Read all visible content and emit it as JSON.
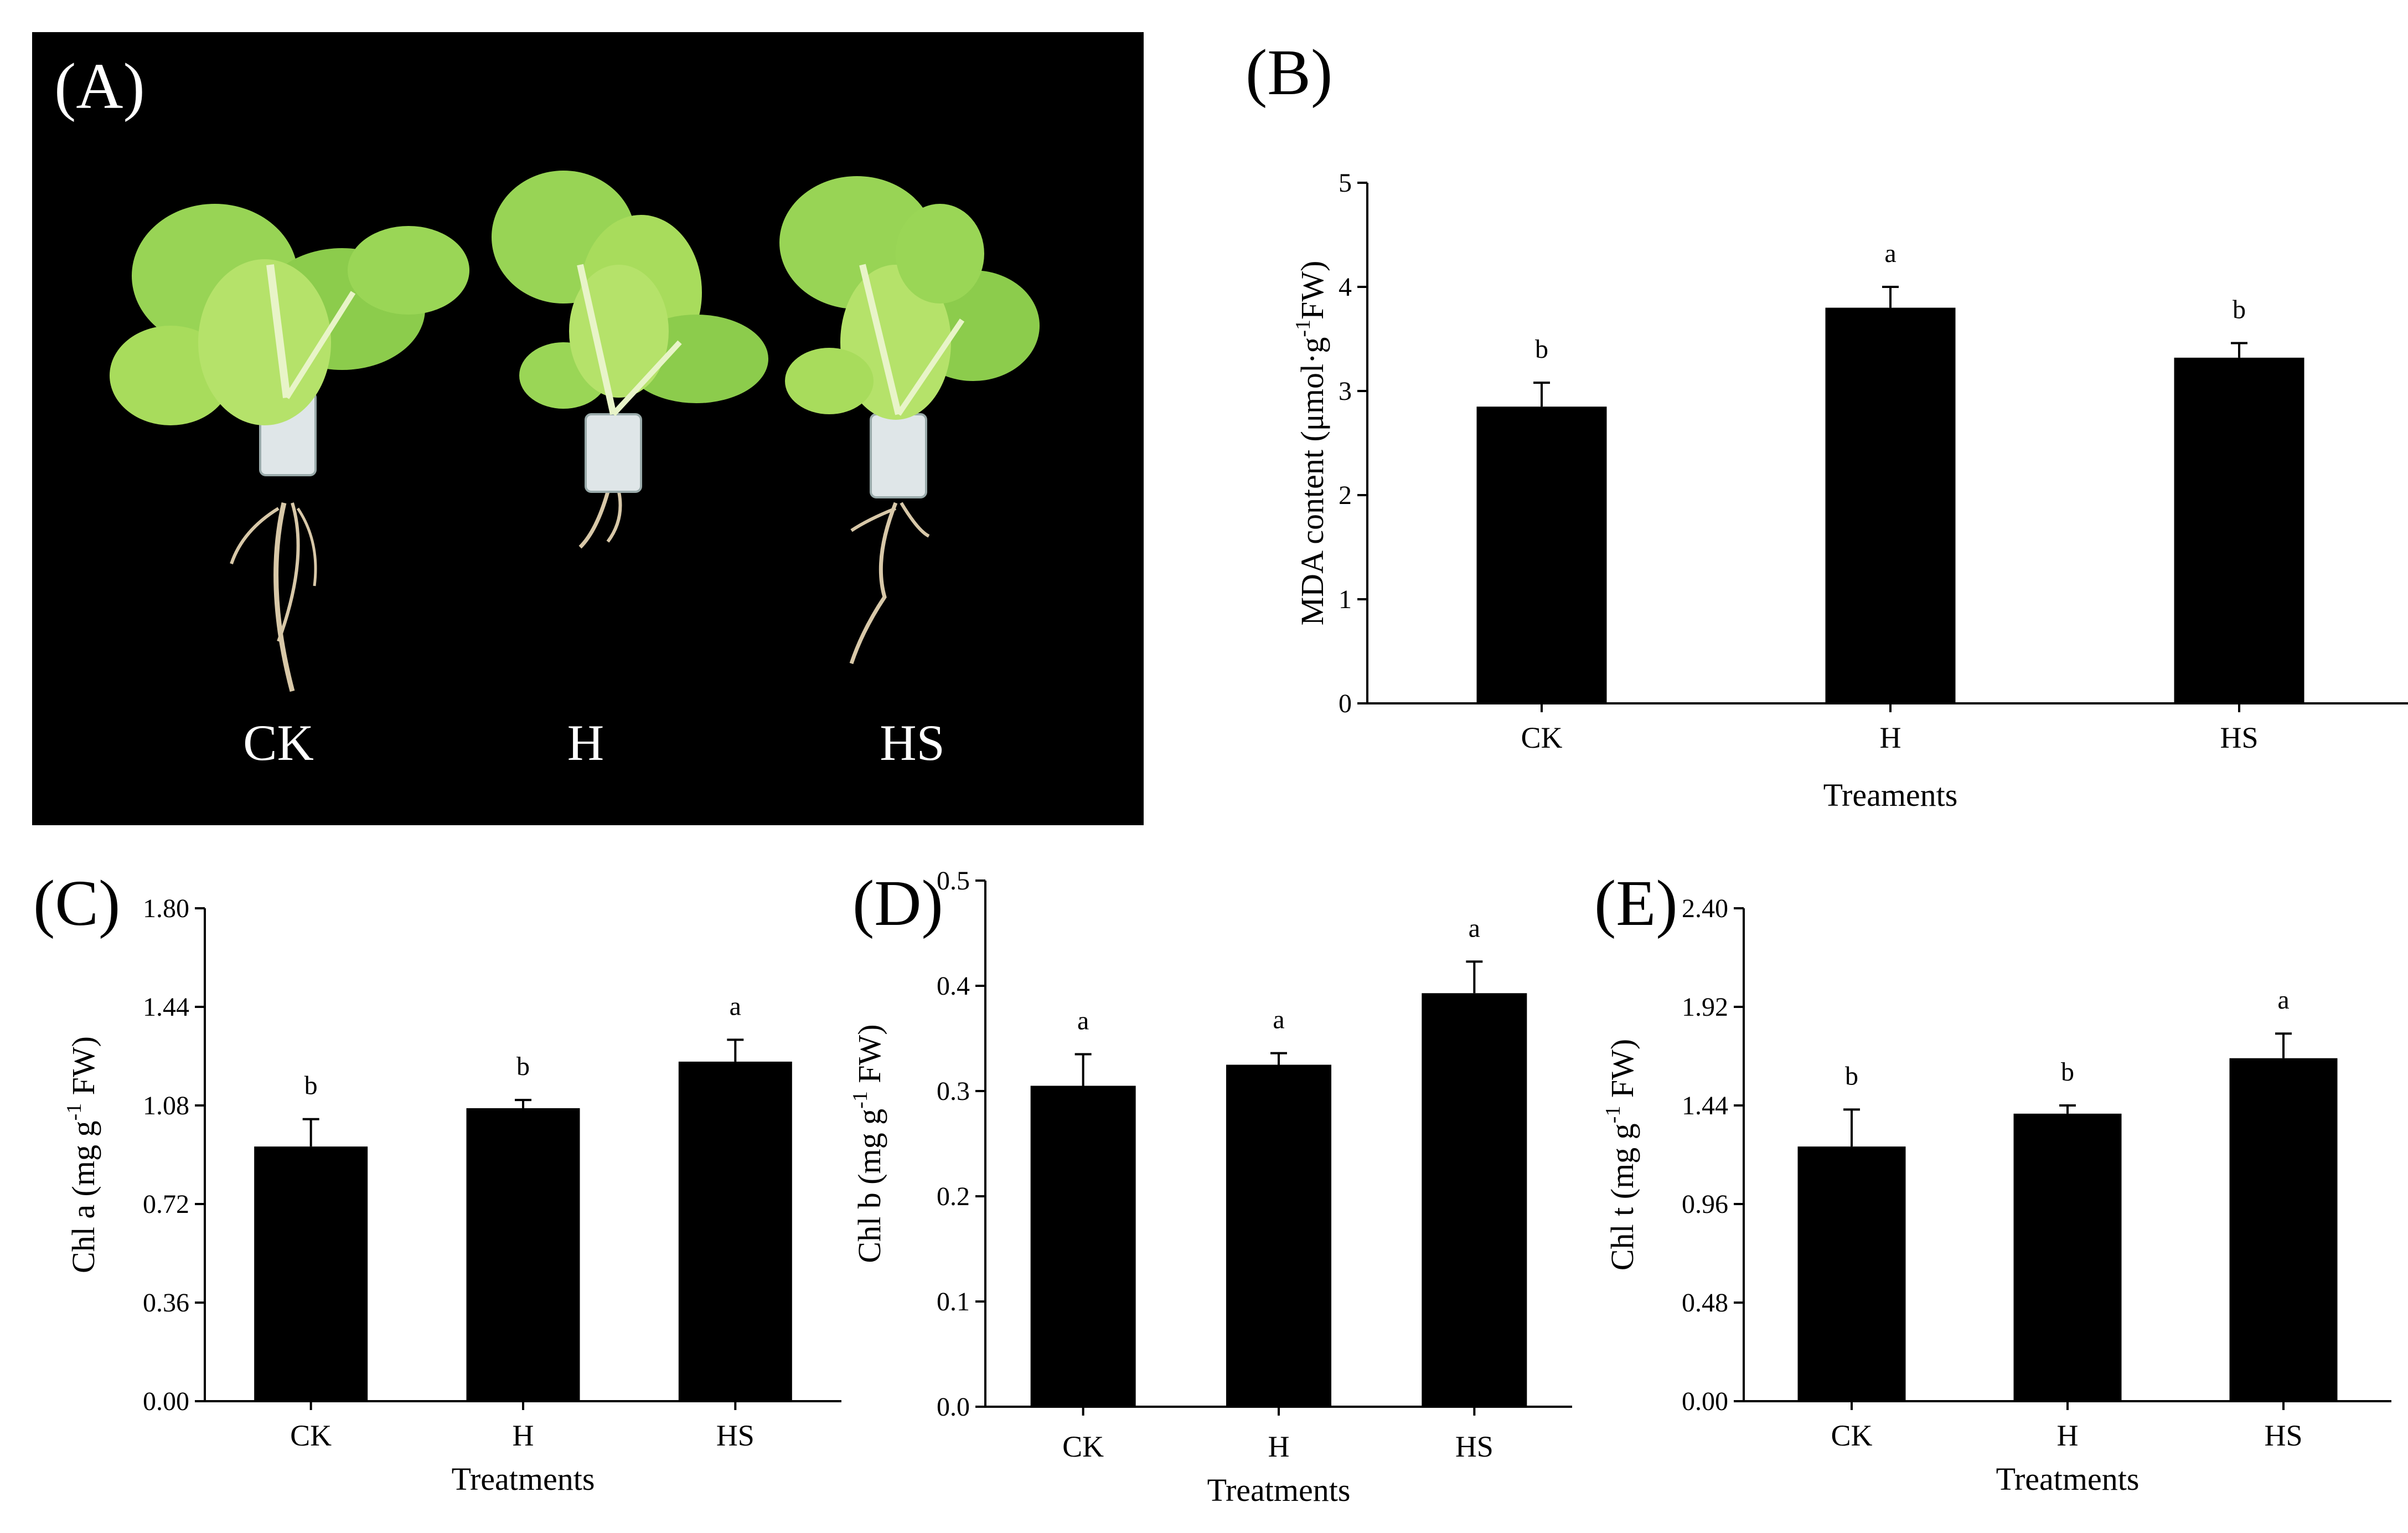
{
  "photo_panel": {
    "letter": "(A)",
    "labels": [
      "CK",
      "H",
      "HS"
    ]
  },
  "colors": {
    "bar": "#000000",
    "photo_background": "#000000",
    "photo_text": "#ffffff"
  },
  "chart_data": [
    {
      "id": "B",
      "letter": "(B)",
      "type": "bar",
      "categories": [
        "CK",
        "H",
        "HS"
      ],
      "values": [
        2.85,
        3.8,
        3.32
      ],
      "errors": [
        0.23,
        0.2,
        0.14
      ],
      "significance": [
        "b",
        "a",
        "b"
      ],
      "xlabel": "Treaments",
      "ylabel": "MDA content (μmol·g",
      "ylabel_sup": "-1",
      "ylabel_tail": "FW)",
      "ylim": [
        0,
        5
      ],
      "yticks": [
        "0",
        "1",
        "2",
        "3",
        "4",
        "5"
      ]
    },
    {
      "id": "C",
      "letter": "(C)",
      "type": "bar",
      "categories": [
        "CK",
        "H",
        "HS"
      ],
      "values": [
        0.93,
        1.07,
        1.24
      ],
      "errors": [
        0.1,
        0.03,
        0.08
      ],
      "significance": [
        "b",
        "b",
        "a"
      ],
      "xlabel": "Treatments",
      "ylabel": "Chl a (mg g",
      "ylabel_sup": "-1",
      "ylabel_tail": " FW)",
      "ylim": [
        0,
        1.8
      ],
      "yticks": [
        "0.00",
        "0.36",
        "0.72",
        "1.08",
        "1.44",
        "1.80"
      ]
    },
    {
      "id": "D",
      "letter": "(D)",
      "type": "bar",
      "categories": [
        "CK",
        "H",
        "HS"
      ],
      "values": [
        0.305,
        0.325,
        0.393
      ],
      "errors": [
        0.03,
        0.011,
        0.03
      ],
      "significance": [
        "a",
        "a",
        "a"
      ],
      "xlabel": "Treatments",
      "ylabel": "Chl b (mg g",
      "ylabel_sup": "-1",
      "ylabel_tail": " FW)",
      "ylim": [
        0,
        0.5
      ],
      "yticks": [
        "0.0",
        "0.1",
        "0.2",
        "0.3",
        "0.4",
        "0.5"
      ]
    },
    {
      "id": "E",
      "letter": "(E)",
      "type": "bar",
      "categories": [
        "CK",
        "H",
        "HS"
      ],
      "values": [
        1.24,
        1.4,
        1.67
      ],
      "errors": [
        0.18,
        0.04,
        0.12
      ],
      "significance": [
        "b",
        "b",
        "a"
      ],
      "xlabel": "Treatments",
      "ylabel": "Chl t (mg g",
      "ylabel_sup": "-1",
      "ylabel_tail": " FW)",
      "ylim": [
        0,
        2.4
      ],
      "yticks": [
        "0.00",
        "0.48",
        "0.96",
        "1.44",
        "1.92",
        "2.40"
      ]
    }
  ]
}
